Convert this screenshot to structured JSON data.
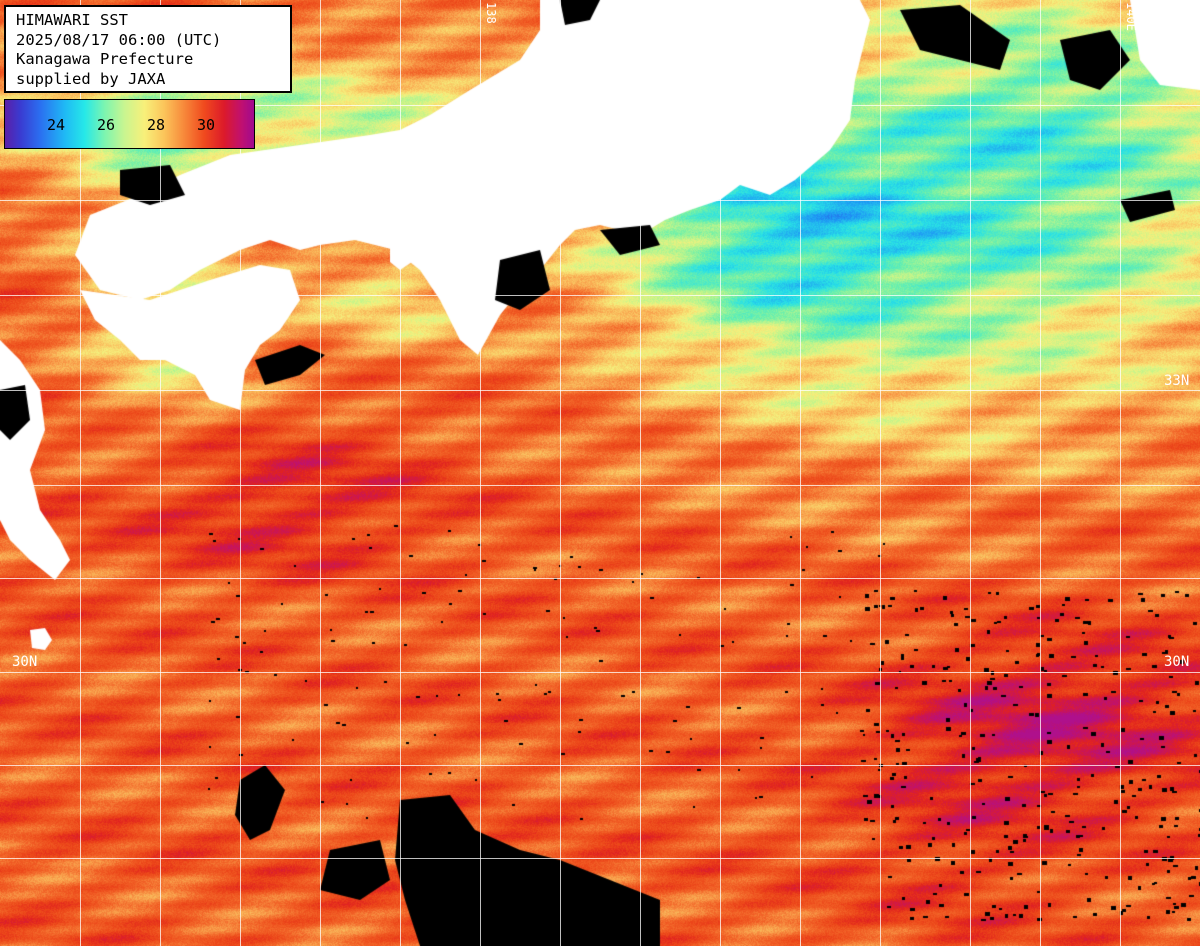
{
  "info": {
    "line1": "HIMAWARI SST",
    "line2": "2025/08/17 06:00 (UTC)",
    "line3": "Kanagawa Prefecture",
    "line4": "supplied by JAXA"
  },
  "colorbar": {
    "ticks": [
      "24",
      "26",
      "28",
      "30"
    ]
  },
  "latitude_labels": {
    "lat33_left": "33",
    "lat33_right": "33N",
    "lat30_left": "30N",
    "lat30_right": "30N"
  },
  "longitude_labels": {
    "top_mid": "138",
    "top_right": "140E"
  },
  "colors": {
    "land": "#ffffff",
    "no_data": "#000000",
    "grid": "#ffffff",
    "warm_sst": "#f25a1c",
    "hot_sst": "#b0108a",
    "cool_sst": "#3fd6d0"
  }
}
